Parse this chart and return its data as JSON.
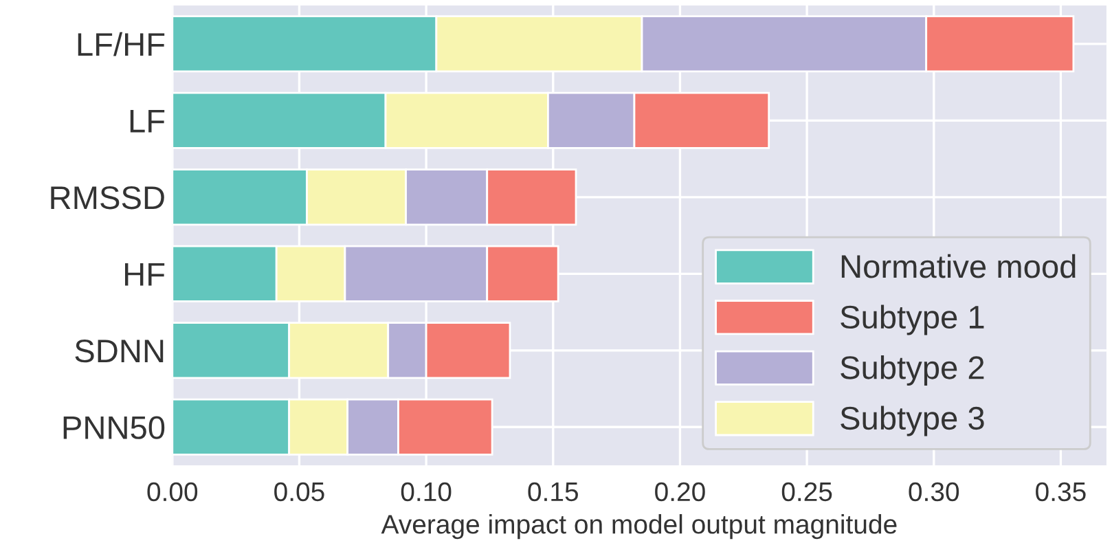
{
  "chart_data": {
    "type": "bar",
    "orientation": "horizontal",
    "stacked": true,
    "categories": [
      "LF/HF",
      "LF",
      "RMSSD",
      "HF",
      "SDNN",
      "PNN50"
    ],
    "series": [
      {
        "name": "Normative mood",
        "color": "#62c6bd",
        "values": [
          0.104,
          0.084,
          0.053,
          0.041,
          0.046,
          0.046
        ]
      },
      {
        "name": "Subtype 3",
        "color": "#f8f5b0",
        "values": [
          0.081,
          0.064,
          0.039,
          0.027,
          0.039,
          0.023
        ]
      },
      {
        "name": "Subtype 2",
        "color": "#b4afd6",
        "values": [
          0.112,
          0.034,
          0.032,
          0.056,
          0.015,
          0.02
        ]
      },
      {
        "name": "Subtype 1",
        "color": "#f47b72",
        "values": [
          0.058,
          0.053,
          0.035,
          0.028,
          0.033,
          0.037
        ]
      }
    ],
    "xlabel": "Average impact on model output magnitude",
    "xlim": [
      0,
      0.368
    ],
    "xticks": [
      {
        "value": 0,
        "label": "0.00"
      },
      0.05,
      {
        "value": 0.1,
        "label": "0.10"
      },
      0.15,
      {
        "value": 0.2,
        "label": "0.20"
      },
      0.25,
      {
        "value": 0.3,
        "label": "0.30"
      },
      0.35
    ],
    "grid": true,
    "legend": "bottom right"
  }
}
